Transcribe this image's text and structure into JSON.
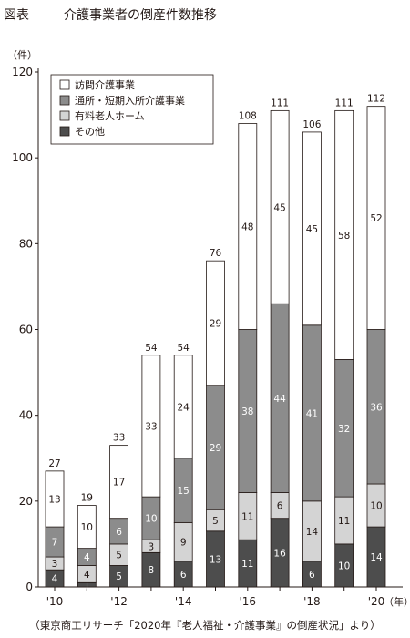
{
  "figure_label": "図表",
  "title": "介護事業者の倒産件数推移",
  "source": "（東京商工リサーチ「2020年『老人福祉・介護事業』の倒産状況」より）",
  "chart_data": {
    "type": "bar",
    "stacked": true,
    "y_unit": "（件）",
    "x_unit": "（年）",
    "ylim": [
      0,
      120
    ],
    "yticks": [
      0,
      20,
      40,
      60,
      80,
      100,
      120
    ],
    "categories": [
      "'10",
      "'11",
      "'12",
      "'13",
      "'14",
      "'15",
      "'16",
      "'17",
      "'18",
      "'19",
      "'20"
    ],
    "x_tick_labels": [
      "'10",
      "",
      "'12",
      "",
      "'14",
      "",
      "'16",
      "",
      "'18",
      "",
      "'20"
    ],
    "series": [
      {
        "name": "その他",
        "color": "#4d4d4d",
        "label_color": "#ffffff",
        "values": [
          4,
          1,
          5,
          8,
          6,
          13,
          11,
          16,
          6,
          10,
          14
        ]
      },
      {
        "name": "有料老人ホーム",
        "color": "#d4d4d4",
        "label_color": "#231815",
        "values": [
          3,
          4,
          5,
          3,
          9,
          5,
          11,
          6,
          14,
          11,
          10
        ]
      },
      {
        "name": "通所・短期入所介護事業",
        "color": "#8c8c8c",
        "label_color": "#ffffff",
        "values": [
          7,
          4,
          6,
          10,
          15,
          29,
          38,
          44,
          41,
          32,
          36
        ]
      },
      {
        "name": "訪問介護事業",
        "color": "#ffffff",
        "label_color": "#231815",
        "values": [
          13,
          10,
          17,
          33,
          24,
          29,
          48,
          45,
          45,
          58,
          52
        ]
      }
    ],
    "totals": [
      27,
      19,
      33,
      54,
      54,
      76,
      108,
      111,
      106,
      111,
      112
    ],
    "legend": [
      "訪問介護事業",
      "通所・短期入所介護事業",
      "有料老人ホーム",
      "その他"
    ],
    "legend_position": "top-left",
    "grid": false
  }
}
